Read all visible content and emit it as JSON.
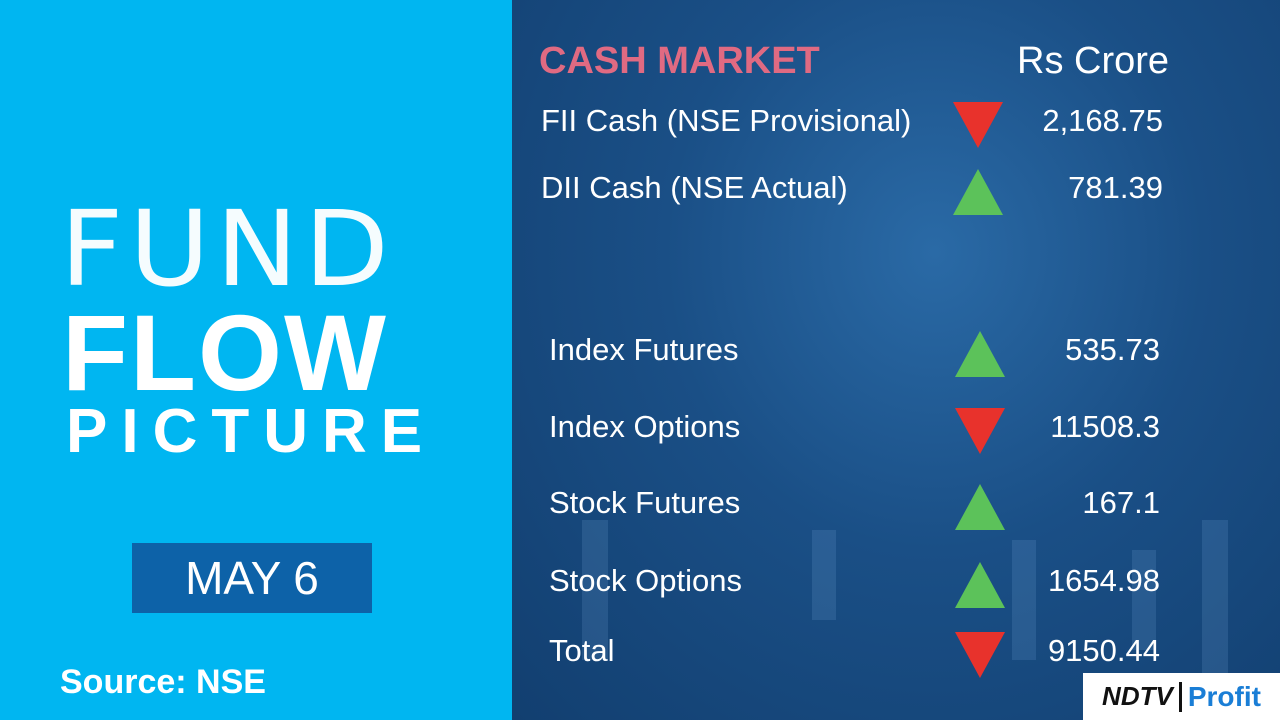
{
  "left": {
    "title_line1": "FUND",
    "title_line2": "FLOW",
    "title_line3": "PICTURE",
    "date": "MAY 6",
    "source": "Source: NSE"
  },
  "panel": {
    "heading": "CASH MARKET",
    "unit": "Rs Crore",
    "cash_rows": [
      {
        "label": "FII Cash (NSE Provisional)",
        "direction": "down",
        "value": "2,168.75"
      },
      {
        "label": "DII Cash (NSE Actual)",
        "direction": "up",
        "value": "781.39"
      }
    ],
    "derivative_rows": [
      {
        "label": "Index Futures",
        "direction": "up",
        "value": "535.73"
      },
      {
        "label": "Index Options",
        "direction": "down",
        "value": "11508.3"
      },
      {
        "label": "Stock Futures",
        "direction": "up",
        "value": "167.1"
      },
      {
        "label": "Stock Options",
        "direction": "up",
        "value": "1654.98"
      },
      {
        "label": "Total",
        "direction": "down",
        "value": "9150.44"
      }
    ]
  },
  "logo": {
    "brand": "NDTV",
    "product": "Profit"
  },
  "colors": {
    "up": "#5cc25a",
    "down": "#e8322c"
  }
}
